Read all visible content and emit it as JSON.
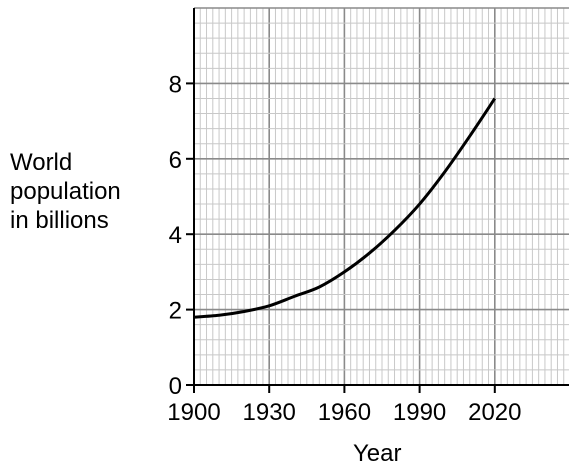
{
  "chart_data": {
    "type": "line",
    "xlabel": "Year",
    "ylabel_lines": [
      "World",
      "population",
      "in billions"
    ],
    "x_ticks": [
      1900,
      1930,
      1960,
      1990,
      2020
    ],
    "y_ticks": [
      0,
      2,
      4,
      6,
      8
    ],
    "xlim": [
      1900,
      2050
    ],
    "ylim": [
      0,
      10
    ],
    "grid": true,
    "series": [
      {
        "x": [
          1900,
          1910,
          1920,
          1930,
          1940,
          1950,
          1960,
          1970,
          1980,
          1990,
          2000,
          2010,
          2020
        ],
        "y": [
          1.8,
          1.85,
          1.95,
          2.1,
          2.35,
          2.6,
          3.0,
          3.5,
          4.1,
          4.8,
          5.65,
          6.6,
          7.6
        ]
      }
    ]
  }
}
